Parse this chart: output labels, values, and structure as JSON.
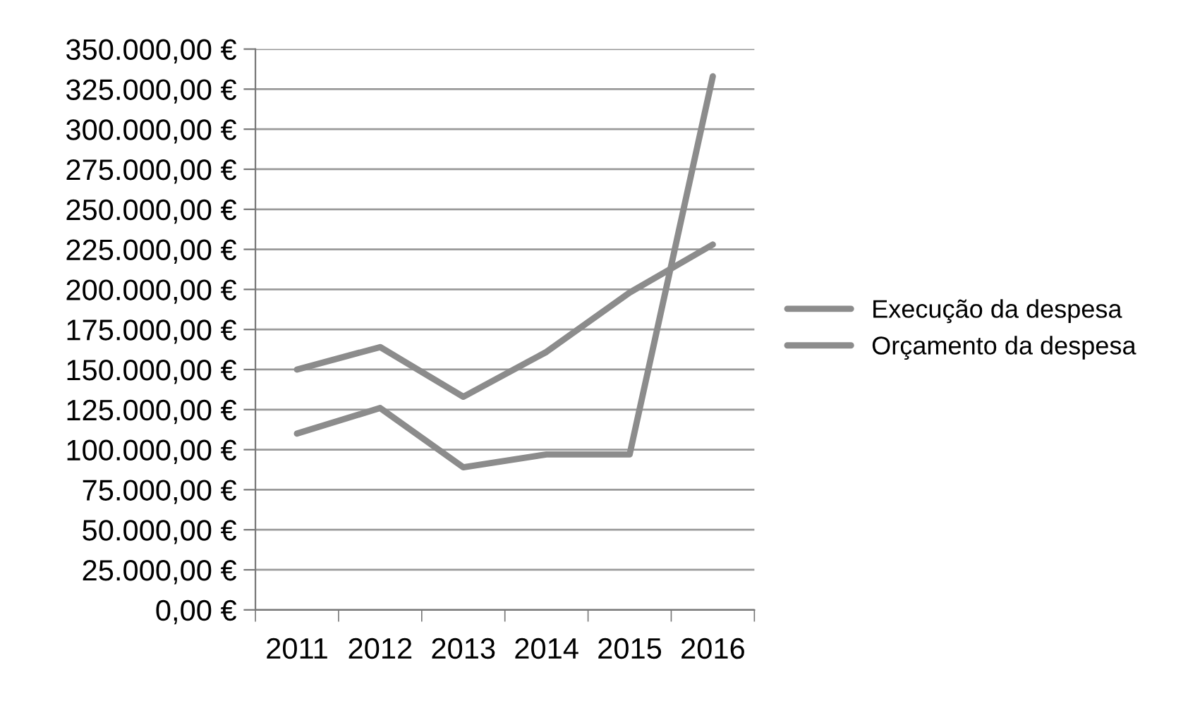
{
  "chart_data": {
    "type": "line",
    "categories": [
      "2011",
      "2012",
      "2013",
      "2014",
      "2015",
      "2016"
    ],
    "series": [
      {
        "name": "Execução da despesa",
        "color": "#8c8c8c",
        "values": [
          110000,
          126000,
          89000,
          97000,
          97000,
          333000
        ]
      },
      {
        "name": "Orçamento da despesa",
        "color": "#8c8c8c",
        "values": [
          150000,
          164000,
          133000,
          161000,
          198000,
          228000
        ]
      }
    ],
    "ylim": [
      0,
      350000
    ],
    "yticks": [
      {
        "value": 0,
        "label": "0,00 €"
      },
      {
        "value": 25000,
        "label": "25.000,00 €"
      },
      {
        "value": 50000,
        "label": "50.000,00 €"
      },
      {
        "value": 75000,
        "label": "75.000,00 €"
      },
      {
        "value": 100000,
        "label": "100.000,00 €"
      },
      {
        "value": 125000,
        "label": "125.000,00 €"
      },
      {
        "value": 150000,
        "label": "150.000,00 €"
      },
      {
        "value": 175000,
        "label": "175.000,00 €"
      },
      {
        "value": 200000,
        "label": "200.000,00 €"
      },
      {
        "value": 225000,
        "label": "225.000,00 €"
      },
      {
        "value": 250000,
        "label": "250.000,00 €"
      },
      {
        "value": 275000,
        "label": "275.000,00 €"
      },
      {
        "value": 300000,
        "label": "300.000,00 €"
      },
      {
        "value": 325000,
        "label": "325.000,00 €"
      },
      {
        "value": 350000,
        "label": "350.000,00 €"
      }
    ],
    "grid": "y",
    "legend": "right",
    "marker": "none",
    "line_style": "solid"
  }
}
